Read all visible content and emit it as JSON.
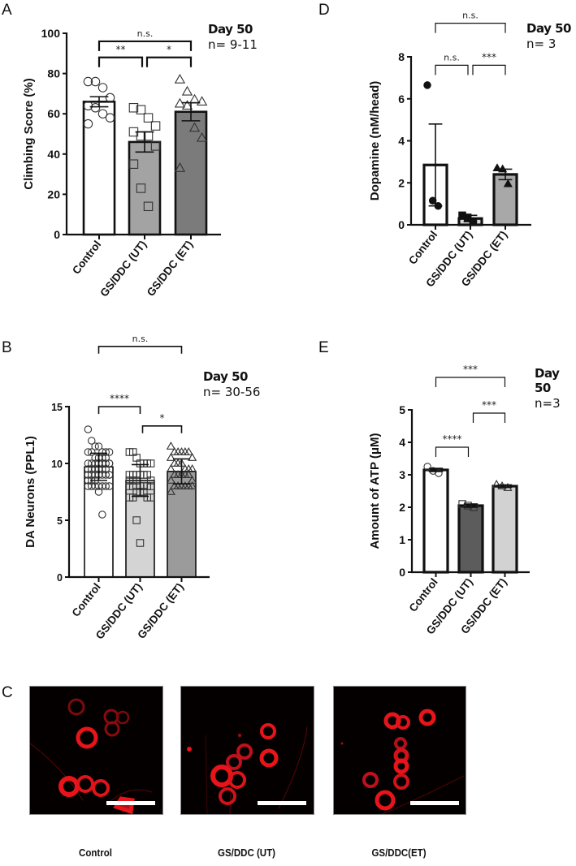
{
  "panels": {
    "A": {
      "letter": "A",
      "day": "Day 50",
      "n": "n= 9-11"
    },
    "B": {
      "letter": "B",
      "day": "Day 50",
      "n": "n= 30-56"
    },
    "C": {
      "letter": "C"
    },
    "D": {
      "letter": "D",
      "day": "Day 50",
      "n": "n= 3"
    },
    "E": {
      "letter": "E",
      "day": "Day 50",
      "n": "n=3"
    }
  },
  "micrographs": {
    "stain_color": "#e8141a",
    "items": [
      {
        "label": "Control"
      },
      {
        "label": "GS/DDC (UT)"
      },
      {
        "label": "GS/DDC(ET)"
      }
    ]
  },
  "chart_data": [
    {
      "id": "A",
      "type": "bar",
      "title": "",
      "xlabel": "",
      "ylabel": "Climbing Score (%)",
      "ylim": [
        0,
        100
      ],
      "yticks": [
        0,
        20,
        40,
        60,
        80,
        100
      ],
      "categories": [
        "Control",
        "GS/DDC (UT)",
        "GS/DDC (ET)"
      ],
      "values": [
        66,
        46,
        61
      ],
      "sem": [
        2.5,
        5,
        4.5
      ],
      "bar_colors": [
        "#ffffff",
        "#a3a3a3",
        "#7b7b7b"
      ],
      "markers": [
        "circle",
        "square",
        "triangle"
      ],
      "points": [
        [
          76,
          76,
          73,
          68,
          64,
          63,
          60,
          58,
          55
        ],
        [
          63,
          62,
          58,
          54,
          51,
          49,
          49,
          44,
          35,
          23,
          14
        ],
        [
          77,
          71,
          67,
          66,
          65,
          64,
          53,
          48,
          33
        ]
      ],
      "significance": [
        {
          "from": 0,
          "to": 2,
          "label": "n.s.",
          "y": 96
        },
        {
          "from": 0,
          "to": 1,
          "label": "**",
          "y": 88
        },
        {
          "from": 1,
          "to": 2,
          "label": "*",
          "y": 88
        }
      ]
    },
    {
      "id": "B",
      "type": "bar",
      "title": "",
      "xlabel": "",
      "ylabel": "DA Neurons (PPL1)",
      "ylim": [
        0,
        15
      ],
      "yticks": [
        0,
        5,
        10,
        15
      ],
      "categories": [
        "Control",
        "GS/DDC (UT)",
        "GS/DDC (ET)"
      ],
      "values": [
        9.7,
        8.5,
        9.3
      ],
      "sd": [
        1.2,
        1.4,
        1.1
      ],
      "bar_colors": [
        "#ffffff",
        "#d4d4d4",
        "#9b9b9b"
      ],
      "markers": [
        "circle",
        "square",
        "triangle"
      ],
      "points": [
        [
          13,
          12,
          11.5,
          11.5,
          11,
          11,
          11,
          11,
          11,
          10.5,
          10.5,
          10.5,
          10.5,
          10,
          10,
          10,
          10,
          10,
          10,
          10,
          10,
          9.5,
          9.5,
          9.5,
          9.5,
          9.5,
          9.5,
          9,
          9,
          9,
          9,
          9,
          9,
          9,
          9,
          8.5,
          8.5,
          8.5,
          8,
          8,
          8,
          8,
          8,
          8,
          8,
          7.5,
          5.5
        ],
        [
          11,
          11,
          10.5,
          10,
          10,
          10,
          10,
          9,
          9,
          9,
          9,
          9,
          9,
          8.5,
          8.5,
          8.5,
          8.5,
          8,
          8,
          8,
          8,
          8,
          8,
          7.5,
          7.5,
          7.5,
          7,
          7,
          7,
          7,
          5,
          3
        ],
        [
          11.5,
          11,
          11,
          11,
          11,
          11,
          10.5,
          10.5,
          10,
          10,
          10,
          9.5,
          9.5,
          9.5,
          9.5,
          9,
          9,
          9,
          9,
          9,
          8.5,
          8.5,
          8,
          8,
          8,
          8,
          8,
          8,
          7.5
        ]
      ],
      "significance": [
        {
          "from": 0,
          "to": 2,
          "label": "n.s.",
          "y": 20.3
        },
        {
          "from": 0,
          "to": 1,
          "label": "****",
          "y": 15
        },
        {
          "from": 1,
          "to": 2,
          "label": "*",
          "y": 13.3
        }
      ]
    },
    {
      "id": "D",
      "type": "bar",
      "title": "",
      "xlabel": "",
      "ylabel": "Dopamine (nM/head)",
      "ylim": [
        0,
        8
      ],
      "yticks": [
        0,
        2,
        4,
        6,
        8
      ],
      "categories": [
        "Control",
        "GS/DDC (UT)",
        "GS/DDC (ET)"
      ],
      "values": [
        2.85,
        0.3,
        2.4
      ],
      "sem": [
        1.95,
        0.15,
        0.25
      ],
      "bar_colors": [
        "#ffffff",
        "#d8d8d8",
        "#a8a8a8"
      ],
      "markers": [
        "circle-filled",
        "square-filled",
        "triangle-filled"
      ],
      "points": [
        [
          6.65,
          1.15,
          0.9
        ],
        [
          0.45,
          0.35,
          0.15
        ],
        [
          2.7,
          2.65,
          1.95
        ]
      ],
      "significance": [
        {
          "from": 0,
          "to": 2,
          "label": "n.s.",
          "y": 9.6
        },
        {
          "from": 0,
          "to": 1,
          "label": "n.s.",
          "y": 7.6
        },
        {
          "from": 1,
          "to": 2,
          "label": "***",
          "y": 7.6
        }
      ]
    },
    {
      "id": "E",
      "type": "bar",
      "title": "",
      "xlabel": "",
      "ylabel": "Amount of ATP (μM)",
      "ylim": [
        0,
        5
      ],
      "yticks": [
        0,
        1,
        2,
        3,
        4,
        5
      ],
      "categories": [
        "Control",
        "GS/DDC (UT)",
        "GS/DDC (ET)"
      ],
      "values": [
        3.15,
        2.05,
        2.65
      ],
      "sem": [
        0.05,
        0.05,
        0.04
      ],
      "bar_colors": [
        "#ffffff",
        "#5c5c5c",
        "#d2d2d2"
      ],
      "markers": [
        "circle",
        "square",
        "triangle"
      ],
      "points": [
        [
          3.25,
          3.12,
          3.05
        ],
        [
          2.1,
          2.05,
          2.0
        ],
        [
          2.7,
          2.65,
          2.6
        ]
      ],
      "significance": [
        {
          "from": 0,
          "to": 2,
          "label": "***",
          "y": 6.0
        },
        {
          "from": 1,
          "to": 2,
          "label": "***",
          "y": 4.9
        },
        {
          "from": 0,
          "to": 1,
          "label": "****",
          "y": 3.85
        }
      ]
    }
  ]
}
